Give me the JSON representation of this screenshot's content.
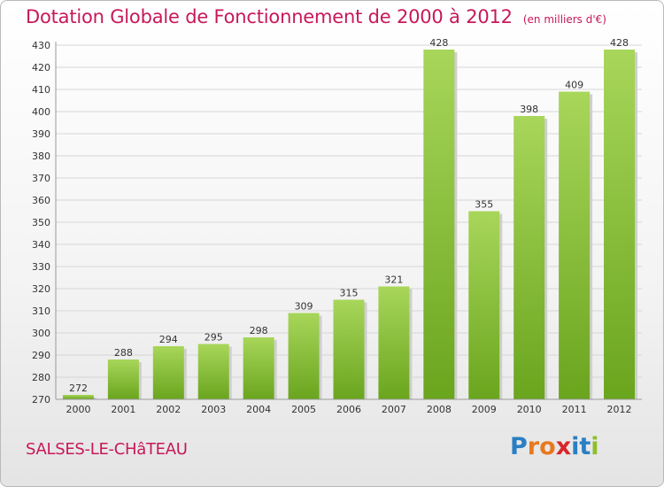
{
  "title": "Dotation Globale de Fonctionnement de 2000 à 2012",
  "unit": "(en milliers d'€)",
  "commune": "SALSES-LE-CHâTEAU",
  "logo": {
    "letters": [
      "P",
      "r",
      "o",
      "x",
      "i",
      "t",
      "i"
    ],
    "colors": [
      "#2a7fc4",
      "#e8791f",
      "#e8791f",
      "#d9262a",
      "#2a7fc4",
      "#2a7fc4",
      "#8fbf2a"
    ]
  },
  "colors": {
    "bar_light": "#a8d65a",
    "bar_dark": "#6aa51e",
    "accent": "#c8185a"
  },
  "chart_data": {
    "type": "bar",
    "categories": [
      "2000",
      "2001",
      "2002",
      "2003",
      "2004",
      "2005",
      "2006",
      "2007",
      "2008",
      "2009",
      "2010",
      "2011",
      "2012"
    ],
    "values": [
      272,
      288,
      294,
      295,
      298,
      309,
      315,
      321,
      428,
      355,
      398,
      409,
      428
    ],
    "data_labels": [
      "272",
      "288",
      "294",
      "295",
      "298",
      "309",
      "315",
      "321",
      "428",
      "355",
      "398",
      "409",
      "428"
    ],
    "ylim": [
      270,
      430
    ],
    "yticks": [
      270,
      280,
      290,
      300,
      310,
      320,
      330,
      340,
      350,
      360,
      370,
      380,
      390,
      400,
      410,
      420,
      430
    ],
    "grid": true,
    "xlabel": "",
    "ylabel": ""
  }
}
